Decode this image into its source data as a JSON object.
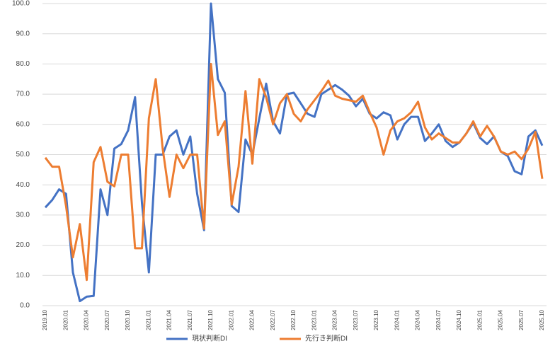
{
  "chart_data": {
    "type": "line",
    "categories": [
      "2019.10",
      null,
      null,
      "2020.01",
      null,
      null,
      "2020.04",
      null,
      null,
      "2020.07",
      null,
      null,
      "2020.10",
      null,
      null,
      "2021.01",
      null,
      null,
      "2021.04",
      null,
      null,
      "2021.07",
      null,
      null,
      "2021.10",
      null,
      null,
      "2022.01",
      null,
      null,
      "2022.04",
      null,
      null,
      "2022.07",
      null,
      null,
      "2022.10",
      null,
      null,
      "2023.01",
      null,
      null,
      "2023.04",
      null,
      null,
      "2023.07",
      null,
      null,
      "2023.10",
      null,
      null,
      "2024.01",
      null,
      null,
      "2024.04",
      null,
      null,
      "2024.07",
      null,
      null,
      "2024.10",
      null,
      null,
      "2025.01",
      null,
      null,
      "2025.04",
      null,
      null,
      "2025.07",
      null,
      null,
      "2025.10"
    ],
    "series": [
      {
        "name": "現状判断DI",
        "color": "#4472c4",
        "values": [
          32.5,
          35,
          38.5,
          37,
          11,
          1.5,
          3,
          3.2,
          38.5,
          30,
          52,
          53.5,
          58,
          69,
          34,
          11,
          50,
          50,
          56,
          58,
          50,
          56,
          37,
          25,
          100,
          75,
          70.5,
          33,
          31,
          55,
          50,
          62,
          73.5,
          61,
          57,
          70,
          70.5,
          67,
          63.5,
          62.5,
          70,
          71.5,
          73,
          71.5,
          69.5,
          66,
          68.5,
          63.5,
          62,
          64,
          63,
          55,
          60,
          62.5,
          62.5,
          54.5,
          57,
          60,
          54.5,
          52.5,
          54,
          57,
          60.5,
          55.5,
          53.5,
          56,
          51,
          49.5,
          44.5,
          43.5,
          56,
          58,
          53
        ]
      },
      {
        "name": "先行き判断DI",
        "color": "#ed7d31",
        "values": [
          49,
          46,
          46,
          33,
          16,
          27,
          8.5,
          47.5,
          52.5,
          41,
          39.5,
          50,
          50,
          19,
          19,
          62,
          75,
          52,
          36,
          50,
          45.5,
          50,
          50,
          25.5,
          80,
          56.5,
          61,
          33.5,
          46,
          71,
          47,
          75,
          69,
          60,
          67,
          70,
          63.5,
          61,
          65,
          68,
          71,
          74.5,
          69.5,
          68.5,
          68,
          67.5,
          69.5,
          64,
          59,
          50,
          58,
          61,
          62,
          64,
          67.5,
          59,
          55,
          57,
          55.5,
          54,
          54,
          57,
          61,
          56,
          59.5,
          56,
          51,
          50,
          51,
          48.5,
          52,
          57.5,
          42
        ]
      }
    ],
    "ylim": [
      0,
      100
    ],
    "yticks": [
      {
        "value": 0,
        "label": "0.0"
      },
      {
        "value": 10,
        "label": "10.0"
      },
      {
        "value": 20,
        "label": "20.0"
      },
      {
        "value": 30,
        "label": "30.0"
      },
      {
        "value": 40,
        "label": "40.0"
      },
      {
        "value": 50,
        "label": "50.0"
      },
      {
        "value": 60,
        "label": "60.0"
      },
      {
        "value": 70,
        "label": "70.0"
      },
      {
        "value": 80,
        "label": "80.0"
      },
      {
        "value": 90,
        "label": "90.0"
      },
      {
        "value": 100,
        "label": "100.0"
      }
    ],
    "grid": true,
    "legend": "bottom"
  }
}
